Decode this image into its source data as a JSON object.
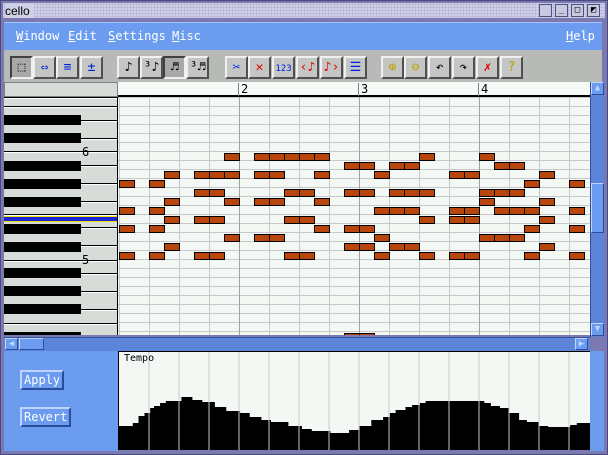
{
  "window": {
    "title": "cello",
    "controls": [
      "iconify",
      "minimize",
      "maximize",
      "restore"
    ]
  },
  "menu": [
    {
      "label": "Window",
      "mnemonic": "W"
    },
    {
      "label": "Edit",
      "mnemonic": "E"
    },
    {
      "label": "Settings",
      "mnemonic": "S"
    },
    {
      "label": "Misc",
      "mnemonic": "M"
    },
    {
      "label": "Help",
      "mnemonic": "H"
    }
  ],
  "toolbar": [
    {
      "icon": "select-pointer-icon",
      "glyph": "⬚",
      "pressed": true
    },
    {
      "icon": "move-note-icon",
      "glyph": "⇔",
      "pressed": false
    },
    {
      "icon": "resize-note-icon",
      "glyph": "≡",
      "pressed": false
    },
    {
      "icon": "add-remove-note-icon",
      "glyph": "±",
      "pressed": false
    },
    {
      "icon": "eighth-note-icon",
      "glyph": "♪",
      "pressed": false
    },
    {
      "icon": "eighth-triplet-icon",
      "glyph": "³♪",
      "pressed": false
    },
    {
      "icon": "sixteenth-note-icon",
      "glyph": "♬",
      "pressed": true
    },
    {
      "icon": "sixteenth-triplet-icon",
      "glyph": "³♬",
      "pressed": false
    },
    {
      "icon": "cut-icon",
      "glyph": "✂",
      "pressed": false
    },
    {
      "icon": "delete-note-icon",
      "glyph": "✕",
      "pressed": false
    },
    {
      "icon": "numbering-icon",
      "glyph": "123",
      "pressed": false
    },
    {
      "icon": "shift-left-icon",
      "glyph": "‹♪",
      "pressed": false
    },
    {
      "icon": "shift-right-icon",
      "glyph": "♪›",
      "pressed": false
    },
    {
      "icon": "quantize-icon",
      "glyph": "☰",
      "pressed": false
    },
    {
      "icon": "zoom-in-icon",
      "glyph": "⊕",
      "pressed": false
    },
    {
      "icon": "zoom-out-icon",
      "glyph": "⊖",
      "pressed": false
    },
    {
      "icon": "undo-icon",
      "glyph": "↶",
      "pressed": false
    },
    {
      "icon": "redo-icon",
      "glyph": "↷",
      "pressed": false
    },
    {
      "icon": "clear-icon",
      "glyph": "✗",
      "pressed": false
    },
    {
      "icon": "help-icon",
      "glyph": "?",
      "pressed": false
    }
  ],
  "ruler": {
    "measures": [
      "2",
      "3",
      "4"
    ]
  },
  "keyboard": {
    "octave_labels": [
      "6",
      "5"
    ]
  },
  "notes": [
    {
      "pitch": "C6",
      "starts": [
        7,
        9,
        10,
        11,
        12,
        13,
        20,
        24
      ]
    },
    {
      "pitch": "B5",
      "starts": [
        15,
        16,
        18,
        19,
        25,
        26
      ]
    },
    {
      "pitch": "A#5",
      "starts": [
        3,
        5,
        6,
        7,
        9,
        10,
        13,
        17,
        22,
        23,
        28
      ]
    },
    {
      "pitch": "A5",
      "starts": [
        0,
        2,
        27,
        30
      ]
    },
    {
      "pitch": "G#5",
      "starts": [
        5,
        6,
        11,
        12,
        15,
        16,
        18,
        19,
        20,
        24,
        25,
        26
      ]
    },
    {
      "pitch": "G5",
      "starts": [
        3,
        7,
        9,
        10,
        13,
        24,
        28
      ]
    },
    {
      "pitch": "F#5",
      "starts": [
        0,
        2,
        17,
        18,
        19,
        22,
        23,
        25,
        26,
        27,
        30
      ]
    },
    {
      "pitch": "F5",
      "starts": [
        3,
        5,
        6,
        11,
        12,
        20,
        22,
        23,
        28
      ]
    },
    {
      "pitch": "E5",
      "starts": [
        0,
        2,
        13,
        15,
        16,
        27,
        30
      ]
    },
    {
      "pitch": "D#5",
      "starts": [
        7,
        9,
        10,
        17,
        24,
        25,
        26
      ]
    },
    {
      "pitch": "D5",
      "starts": [
        3,
        15,
        16,
        18,
        19,
        28
      ]
    },
    {
      "pitch": "C#5",
      "starts": [
        0,
        2,
        5,
        6,
        11,
        12,
        17,
        20,
        22,
        23,
        27,
        30
      ]
    },
    {
      "pitch": "E4",
      "starts": [
        15,
        16
      ]
    }
  ],
  "buttons": {
    "apply": "Apply",
    "revert": "Revert"
  },
  "tempo": {
    "label": "Tempo",
    "max": 98,
    "segments": [
      [
        0,
        24
      ],
      [
        0.46,
        27
      ],
      [
        0.65,
        34
      ],
      [
        0.85,
        37
      ],
      [
        1.04,
        42
      ],
      [
        1.17,
        44
      ],
      [
        1.37,
        47
      ],
      [
        1.56,
        49
      ],
      [
        2.08,
        53
      ],
      [
        2.43,
        50
      ],
      [
        2.76,
        48
      ],
      [
        3.18,
        43
      ],
      [
        3.56,
        39
      ],
      [
        4.02,
        37
      ],
      [
        4.34,
        33
      ],
      [
        4.73,
        30
      ],
      [
        5.05,
        28
      ],
      [
        5.63,
        24
      ],
      [
        6.08,
        21
      ],
      [
        6.41,
        19
      ],
      [
        7.03,
        17
      ],
      [
        7.67,
        20
      ],
      [
        8.02,
        24
      ],
      [
        8.41,
        30
      ],
      [
        8.8,
        33
      ],
      [
        9.03,
        37
      ],
      [
        9.22,
        40
      ],
      [
        9.55,
        43
      ],
      [
        9.77,
        45
      ],
      [
        10.03,
        47
      ],
      [
        10.22,
        49
      ],
      [
        12.16,
        47
      ],
      [
        12.38,
        44
      ],
      [
        12.68,
        42
      ],
      [
        13.0,
        37
      ],
      [
        13.32,
        30
      ],
      [
        13.58,
        28
      ],
      [
        13.97,
        24
      ],
      [
        14.29,
        23
      ],
      [
        15.04,
        25
      ],
      [
        15.26,
        27
      ]
    ]
  },
  "colors": {
    "menubar": "#6c9cf0",
    "note": "#b8460c",
    "grid": "#f4f8f4",
    "highlight": "#1c24d8"
  }
}
